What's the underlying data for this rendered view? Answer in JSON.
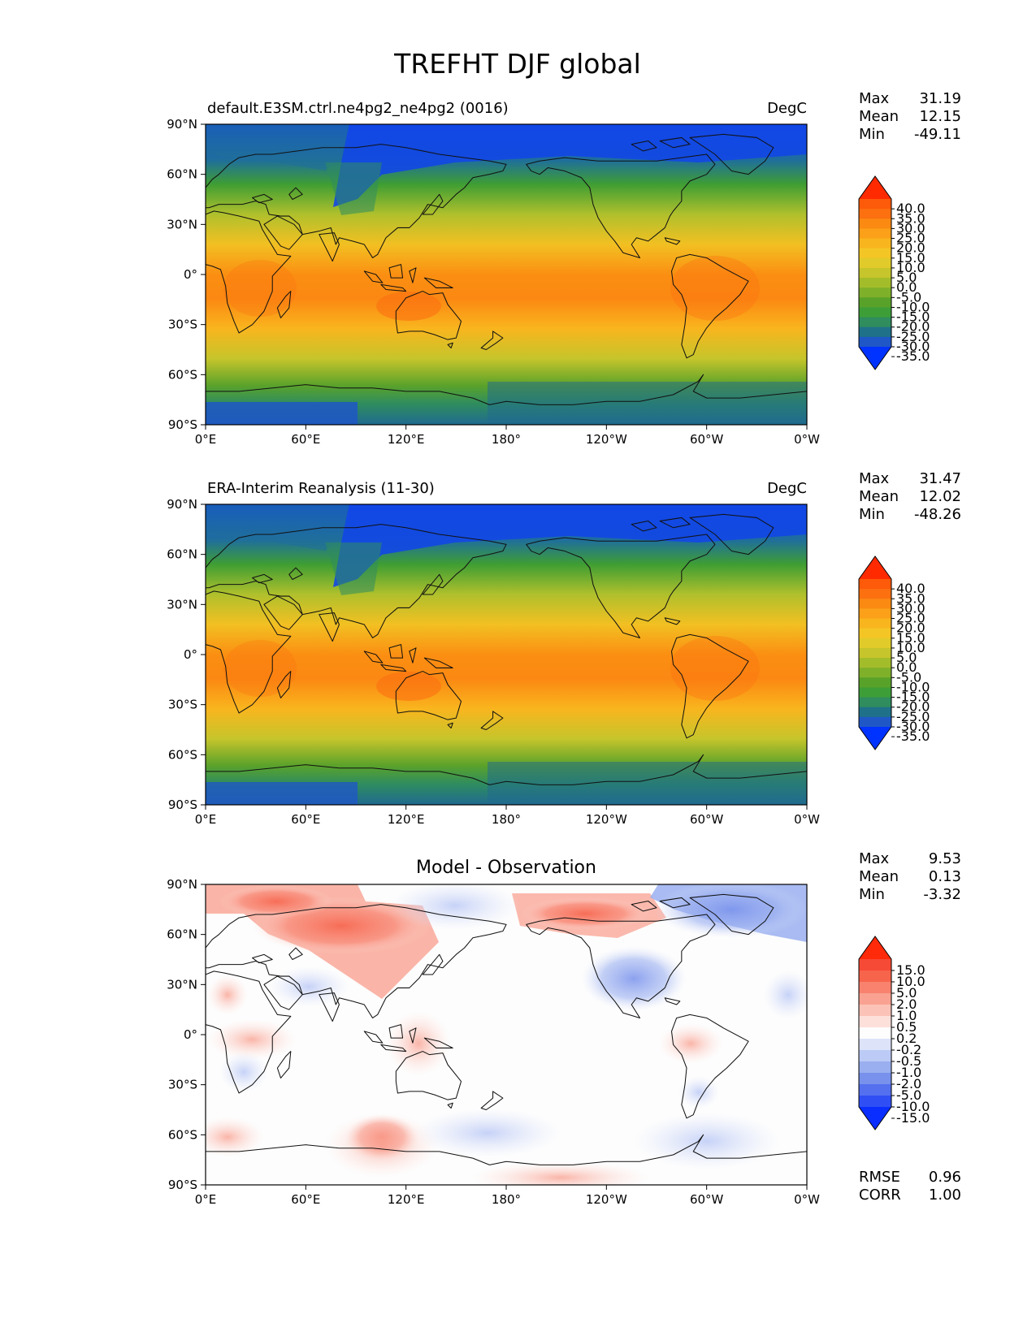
{
  "title": "TREFHT DJF global",
  "chart_data": [
    {
      "type": "heatmap",
      "title": "default.E3SM.ctrl.ne4pg2_ne4pg2 (0016)",
      "units": "DegC",
      "xlim": [
        0,
        360
      ],
      "ylim": [
        -90,
        90
      ],
      "xticks": [
        "0°E",
        "60°E",
        "120°E",
        "180°",
        "120°W",
        "60°W",
        "0°W"
      ],
      "yticks": [
        "90°N",
        "60°N",
        "30°N",
        "0°",
        "30°S",
        "60°S",
        "90°S"
      ],
      "stats": {
        "max_label": "Max",
        "max": "31.19",
        "mean_label": "Mean",
        "mean": "12.15",
        "min_label": "Min",
        "min": "-49.11"
      },
      "colorbar": {
        "ticks": [
          "40.0",
          "35.0",
          "30.0",
          "25.0",
          "20.0",
          "15.0",
          "10.0",
          "5.0",
          "0.0",
          "-5.0",
          "-10.0",
          "-15.0",
          "-20.0",
          "-25.0",
          "-30.0",
          "-35.0"
        ],
        "colors": [
          "#ff2a00",
          "#fd5a0a",
          "#fc7010",
          "#fb8a12",
          "#fba018",
          "#f9b51e",
          "#f3c625",
          "#e1cb2a",
          "#c6c52b",
          "#a3bc2a",
          "#7fb02a",
          "#58a229",
          "#3d9e38",
          "#2f8d5e",
          "#1f7189",
          "#1f57c6",
          "#0033ff"
        ]
      }
    },
    {
      "type": "heatmap",
      "title": "ERA-Interim Reanalysis (11-30)",
      "units": "DegC",
      "xlim": [
        0,
        360
      ],
      "ylim": [
        -90,
        90
      ],
      "xticks": [
        "0°E",
        "60°E",
        "120°E",
        "180°",
        "120°W",
        "60°W",
        "0°W"
      ],
      "yticks": [
        "90°N",
        "60°N",
        "30°N",
        "0°",
        "30°S",
        "60°S",
        "90°S"
      ],
      "stats": {
        "max_label": "Max",
        "max": "31.47",
        "mean_label": "Mean",
        "mean": "12.02",
        "min_label": "Min",
        "min": "-48.26"
      },
      "colorbar": {
        "ticks": [
          "40.0",
          "35.0",
          "30.0",
          "25.0",
          "20.0",
          "15.0",
          "10.0",
          "5.0",
          "0.0",
          "-5.0",
          "-10.0",
          "-15.0",
          "-20.0",
          "-25.0",
          "-30.0",
          "-35.0"
        ],
        "colors": [
          "#ff2a00",
          "#fd5a0a",
          "#fc7010",
          "#fb8a12",
          "#fba018",
          "#f9b51e",
          "#f3c625",
          "#e1cb2a",
          "#c6c52b",
          "#a3bc2a",
          "#7fb02a",
          "#58a229",
          "#3d9e38",
          "#2f8d5e",
          "#1f7189",
          "#1f57c6",
          "#0033ff"
        ]
      }
    },
    {
      "type": "heatmap",
      "title": "Model - Observation",
      "xlim": [
        0,
        360
      ],
      "ylim": [
        -90,
        90
      ],
      "xticks": [
        "0°E",
        "60°E",
        "120°E",
        "180°",
        "120°W",
        "60°W",
        "0°W"
      ],
      "yticks": [
        "90°N",
        "60°N",
        "30°N",
        "0°",
        "30°S",
        "60°S",
        "90°S"
      ],
      "stats": {
        "max_label": "Max",
        "max": "9.53",
        "mean_label": "Mean",
        "mean": "0.13",
        "min_label": "Min",
        "min": "-3.32"
      },
      "metrics": {
        "rmse_label": "RMSE",
        "rmse": "0.96",
        "corr_label": "CORR",
        "corr": "1.00"
      },
      "colorbar": {
        "ticks": [
          "15.0",
          "10.0",
          "5.0",
          "2.0",
          "1.0",
          "0.5",
          "0.2",
          "-0.2",
          "-0.5",
          "-1.0",
          "-2.0",
          "-5.0",
          "-10.0",
          "-15.0"
        ],
        "colors": [
          "#ff2a0a",
          "#f64a36",
          "#f7644c",
          "#f8826e",
          "#f9a292",
          "#fbc3b8",
          "#fde0da",
          "#fdfdfd",
          "#dde4fa",
          "#bccaf6",
          "#9aaff0",
          "#7891ec",
          "#5470ee",
          "#2f4ff4",
          "#0a2eff"
        ]
      }
    }
  ]
}
